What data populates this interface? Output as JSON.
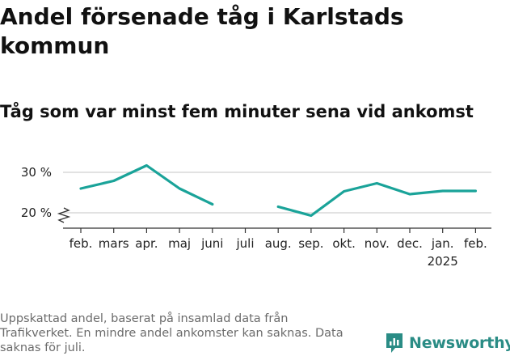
{
  "title": "Andel försenade tåg i Karlstads kommun",
  "subtitle": "Tåg som var minst fem minuter sena vid ankomst",
  "footnote": "Uppskattad andel, baserat på insamlad data från Trafikverket. En mindre andel ankomster kan saknas. Data saknas för juli.",
  "brand": {
    "name": "Newsworthy"
  },
  "colors": {
    "line": "#1aa399",
    "grid": "#d9d9d9",
    "axis": "#333333",
    "brand": "#2a8c85"
  },
  "chart_data": {
    "type": "line",
    "title": "Andel försenade tåg i Karlstads kommun",
    "subtitle": "Tåg som var minst fem minuter sena vid ankomst",
    "xlabel": "",
    "ylabel": "",
    "categories": [
      "feb.",
      "mars",
      "apr.",
      "maj",
      "juni",
      "juli",
      "aug.",
      "sep.",
      "okt.",
      "nov.",
      "dec.",
      "jan.",
      "feb."
    ],
    "year_labels": [
      "",
      "",
      "",
      "",
      "",
      "",
      "",
      "",
      "",
      "",
      "",
      "2025",
      ""
    ],
    "series": [
      {
        "values": [
          26.0,
          27.9,
          31.7,
          26.0,
          22.1,
          null,
          21.5,
          19.3,
          25.3,
          27.3,
          24.6,
          25.4,
          25.4
        ]
      }
    ],
    "y_ticks": [
      20,
      30
    ],
    "y_tick_labels": [
      "20 %",
      "30 %"
    ],
    "ylim": [
      17,
      33
    ],
    "grid": true,
    "axis_break": true,
    "legend": "none"
  }
}
